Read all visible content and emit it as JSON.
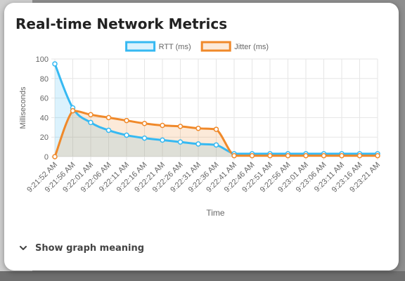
{
  "card": {
    "title": "Real-time Network Metrics",
    "toggle_label": "Show graph meaning"
  },
  "chart_data": {
    "type": "area",
    "xlabel": "Time",
    "ylabel": "Milliseconds",
    "ylim": [
      0,
      100
    ],
    "yticks": [
      0,
      20,
      40,
      60,
      80,
      100
    ],
    "grid": true,
    "legend_position": "top",
    "categories": [
      "9:21:52 AM",
      "9:21:56 AM",
      "9:22:01 AM",
      "9:22:06 AM",
      "9:22:11 AM",
      "9:22:16 AM",
      "9:22:21 AM",
      "9:22:26 AM",
      "9:22:31 AM",
      "9:22:36 AM",
      "9:22:41 AM",
      "9:22:46 AM",
      "9:22:51 AM",
      "9:22:56 AM",
      "9:23:01 AM",
      "9:23:06 AM",
      "9:23:11 AM",
      "9:23:16 AM",
      "9:23:21 AM"
    ],
    "series": [
      {
        "name": "RTT (ms)",
        "color": "#36b9f2",
        "fill": "rgba(54,185,242,0.18)",
        "values": [
          95,
          50,
          35,
          27,
          22,
          19,
          17,
          15,
          13,
          12,
          3,
          3,
          3,
          3,
          3,
          3,
          3,
          3,
          3
        ]
      },
      {
        "name": "Jitter (ms)",
        "color": "#f0892a",
        "fill": "rgba(240,137,42,0.18)",
        "values": [
          0,
          47,
          43,
          40,
          37,
          34,
          32,
          31,
          29,
          28,
          1,
          1,
          1,
          1,
          1,
          1,
          1,
          1,
          1
        ]
      }
    ]
  }
}
